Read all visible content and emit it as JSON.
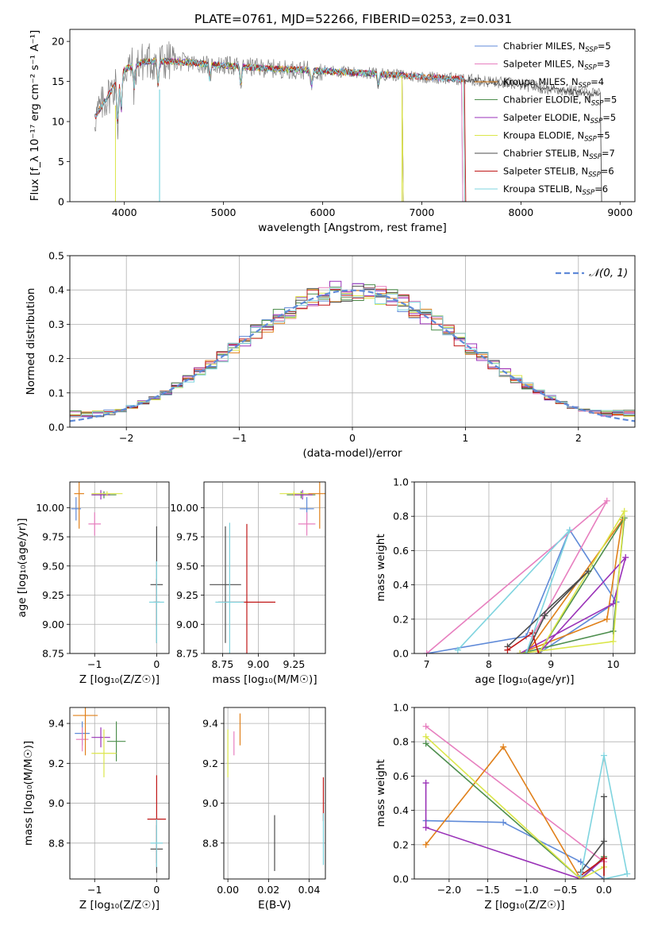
{
  "title": "PLATE=0761, MJD=52266, FIBERID=0253, z=0.031",
  "colors": {
    "Chabrier MILES": "#5f8ad8",
    "Salpeter MILES": "#e77fbf",
    "Kroupa MILES": "#e0801a",
    "Chabrier ELODIE": "#4e8f4e",
    "Salpeter ELODIE": "#9a32b8",
    "Kroupa ELODIE": "#dbe64a",
    "Chabrier STELIB": "#4d4d4d",
    "Salpeter STELIB": "#c01818",
    "Kroupa STELIB": "#7fd4df"
  },
  "chart_data": [
    {
      "id": "spectrum",
      "type": "line",
      "title": "PLATE=0761, MJD=52266, FIBERID=0253, z=0.031",
      "xlabel": "wavelength [Angstrom, rest frame]",
      "ylabel": "Flux [f_λ 10⁻¹⁷ erg cm⁻² s⁻¹ A⁻¹]",
      "xlim": [
        3450,
        9150
      ],
      "ylim": [
        0,
        21.5
      ],
      "xticks": [
        4000,
        5000,
        6000,
        7000,
        8000,
        9000
      ],
      "yticks": [
        0,
        5,
        10,
        15,
        20
      ],
      "grid": false,
      "legend_position": "upper-right",
      "continuum": [
        [
          3700,
          10.5
        ],
        [
          3800,
          12.5
        ],
        [
          3900,
          14.5
        ],
        [
          4000,
          16.5
        ],
        [
          4200,
          17.5
        ],
        [
          4500,
          17.5
        ],
        [
          5000,
          17.0
        ],
        [
          5500,
          16.6
        ],
        [
          6000,
          16.3
        ],
        [
          6500,
          16.0
        ],
        [
          7000,
          15.6
        ],
        [
          7500,
          15.2
        ],
        [
          8000,
          14.6
        ],
        [
          8500,
          13.8
        ],
        [
          8800,
          13.4
        ]
      ],
      "series": [
        {
          "name": "Chabrier MILES",
          "nssp": "5",
          "xrange": [
            3700,
            7400
          ]
        },
        {
          "name": "Salpeter MILES",
          "nssp": "3",
          "xrange": [
            3700,
            7400
          ]
        },
        {
          "name": "Kroupa MILES",
          "nssp": "4",
          "xrange": [
            3700,
            7420
          ]
        },
        {
          "name": "Chabrier ELODIE",
          "nssp": "5",
          "xrange": [
            3900,
            6800
          ]
        },
        {
          "name": "Salpeter ELODIE",
          "nssp": "5",
          "xrange": [
            3900,
            6800
          ]
        },
        {
          "name": "Kroupa ELODIE",
          "nssp": "5",
          "xrange": [
            3900,
            6800
          ]
        },
        {
          "name": "Chabrier STELIB",
          "nssp": "7",
          "xrange": [
            3700,
            8800
          ]
        },
        {
          "name": "Salpeter STELIB",
          "nssp": "6",
          "xrange": [
            3700,
            7430
          ]
        },
        {
          "name": "Kroupa STELIB",
          "nssp": "6",
          "xrange": [
            3700,
            7420
          ]
        }
      ]
    },
    {
      "id": "residuals",
      "type": "bar",
      "xlabel": "(data-model)/error",
      "ylabel": "Normed distribution",
      "xlim": [
        -2.5,
        2.5
      ],
      "ylim": [
        0,
        0.5
      ],
      "xticks": [
        -2,
        -1,
        0,
        1,
        2
      ],
      "yticks": [
        0.0,
        0.1,
        0.2,
        0.3,
        0.4,
        0.5
      ],
      "grid": true,
      "legend": "𝒩(0, 1)",
      "legend_position": "upper-right",
      "bin_width": 0.1
    },
    {
      "id": "age-vs-Z",
      "type": "scatter",
      "xlabel": "Z [log₁₀(Z/Z☉)]",
      "ylabel": "age  [log₁₀(age/yr)]",
      "xlim": [
        -1.4,
        0.2
      ],
      "ylim": [
        8.75,
        10.22
      ],
      "xticks": [
        -1,
        0
      ],
      "yticks": [
        8.75,
        9.0,
        9.25,
        9.5,
        9.75,
        10.0
      ],
      "grid": true,
      "points": [
        {
          "series": "Chabrier MILES",
          "x": -1.3,
          "y": 9.99,
          "xerr": 0.08,
          "yerr": 0.1
        },
        {
          "series": "Salpeter MILES",
          "x": -1.0,
          "y": 9.86,
          "xerr": 0.1,
          "yerr": 0.1
        },
        {
          "series": "Kroupa MILES",
          "x": -1.25,
          "y": 10.12,
          "xerr": 0.08,
          "yerr": 0.3
        },
        {
          "series": "Chabrier ELODIE",
          "x": -0.85,
          "y": 10.11,
          "xerr": 0.2,
          "yerr": 0.03
        },
        {
          "series": "Salpeter ELODIE",
          "x": -0.9,
          "y": 10.11,
          "xerr": 0.15,
          "yerr": 0.04
        },
        {
          "series": "Kroupa ELODIE",
          "x": -0.8,
          "y": 10.12,
          "xerr": 0.25,
          "yerr": 0.02
        },
        {
          "series": "Chabrier STELIB",
          "x": 0.0,
          "y": 9.34,
          "xerr": 0.1,
          "yerr": 0.5
        },
        {
          "series": "Salpeter STELIB",
          "x": 0.0,
          "y": 9.19,
          "xerr": 0.05,
          "yerr": 0.2
        },
        {
          "series": "Kroupa STELIB",
          "x": 0.0,
          "y": 9.19,
          "xerr": 0.12,
          "yerr": 0.35
        }
      ]
    },
    {
      "id": "age-vs-mass",
      "type": "scatter",
      "xlabel": "mass [log₁₀(M/M☉)]",
      "xlim": [
        8.62,
        9.47
      ],
      "ylim": [
        8.75,
        10.22
      ],
      "xticks": [
        8.75,
        9.0,
        9.25
      ],
      "yticks": [
        8.75,
        9.0,
        9.25,
        9.5,
        9.75,
        10.0
      ],
      "grid": true,
      "points": [
        {
          "series": "Chabrier MILES",
          "x": 9.34,
          "y": 9.99,
          "xerr": 0.05,
          "yerr": 0.1
        },
        {
          "series": "Salpeter MILES",
          "x": 9.34,
          "y": 9.86,
          "xerr": 0.06,
          "yerr": 0.1
        },
        {
          "series": "Kroupa MILES",
          "x": 9.43,
          "y": 10.12,
          "xerr": 0.08,
          "yerr": 0.3
        },
        {
          "series": "Chabrier ELODIE",
          "x": 9.3,
          "y": 10.11,
          "xerr": 0.1,
          "yerr": 0.03
        },
        {
          "series": "Salpeter ELODIE",
          "x": 9.31,
          "y": 10.11,
          "xerr": 0.07,
          "yerr": 0.04
        },
        {
          "series": "Kroupa ELODIE",
          "x": 9.25,
          "y": 10.12,
          "xerr": 0.1,
          "yerr": 0.02
        },
        {
          "series": "Chabrier STELIB",
          "x": 8.77,
          "y": 9.34,
          "xerr": 0.11,
          "yerr": 0.5
        },
        {
          "series": "Salpeter STELIB",
          "x": 8.92,
          "y": 9.19,
          "xerr": 0.2,
          "yerr": 0.67
        },
        {
          "series": "Kroupa STELIB",
          "x": 8.8,
          "y": 9.19,
          "xerr": 0.1,
          "yerr": 0.68
        }
      ]
    },
    {
      "id": "mass-weight-vs-age",
      "type": "line",
      "xlabel": "age  [log₁₀(age/yr)]",
      "ylabel": "mass weight",
      "xlim": [
        6.8,
        10.35
      ],
      "ylim": [
        0,
        1
      ],
      "xticks": [
        7,
        8,
        9,
        10
      ],
      "yticks": [
        0.0,
        0.2,
        0.4,
        0.6,
        0.8,
        1.0
      ],
      "grid": true,
      "series": [
        {
          "name": "Chabrier MILES",
          "points": [
            [
              7.0,
              0.0
            ],
            [
              8.6,
              0.1
            ],
            [
              9.3,
              0.72
            ],
            [
              10.05,
              0.3
            ],
            [
              8.8,
              0.0
            ]
          ]
        },
        {
          "name": "Salpeter MILES",
          "points": [
            [
              7.0,
              0.0
            ],
            [
              9.9,
              0.89
            ],
            [
              8.7,
              0.1
            ]
          ]
        },
        {
          "name": "Kroupa MILES",
          "points": [
            [
              8.5,
              0.0
            ],
            [
              9.9,
              0.2
            ],
            [
              10.15,
              0.78
            ],
            [
              8.6,
              0.0
            ]
          ]
        },
        {
          "name": "Chabrier ELODIE",
          "points": [
            [
              8.5,
              0.0
            ],
            [
              10.0,
              0.13
            ],
            [
              10.18,
              0.79
            ],
            [
              8.8,
              0.0
            ]
          ]
        },
        {
          "name": "Salpeter ELODIE",
          "points": [
            [
              8.5,
              0.0
            ],
            [
              10.0,
              0.29
            ],
            [
              10.2,
              0.56
            ],
            [
              8.8,
              0.0
            ]
          ]
        },
        {
          "name": "Kroupa ELODIE",
          "points": [
            [
              8.5,
              0.0
            ],
            [
              10.0,
              0.07
            ],
            [
              10.18,
              0.83
            ],
            [
              8.8,
              0.0
            ]
          ]
        },
        {
          "name": "Chabrier STELIB",
          "points": [
            [
              8.3,
              0.04
            ],
            [
              9.6,
              0.48
            ],
            [
              8.9,
              0.22
            ],
            [
              8.6,
              0.0
            ]
          ]
        },
        {
          "name": "Salpeter STELIB",
          "points": [
            [
              8.3,
              0.02
            ],
            [
              8.7,
              0.12
            ],
            [
              8.8,
              0.0
            ]
          ]
        },
        {
          "name": "Kroupa STELIB",
          "points": [
            [
              7.5,
              0.02
            ],
            [
              9.3,
              0.72
            ],
            [
              8.6,
              0.0
            ]
          ]
        }
      ]
    },
    {
      "id": "mass-vs-Z",
      "type": "scatter",
      "xlabel": "Z [log₁₀(Z/Z☉)]",
      "ylabel": "mass [log₁₀(M/M☉)]",
      "xlim": [
        -1.4,
        0.2
      ],
      "ylim": [
        8.62,
        9.48
      ],
      "xticks": [
        -1,
        0
      ],
      "yticks": [
        8.8,
        9.0,
        9.2,
        9.4
      ],
      "grid": true,
      "points": [
        {
          "series": "Chabrier MILES",
          "x": -1.2,
          "y": 9.35,
          "xerr": 0.12,
          "yerr": 0.06
        },
        {
          "series": "Salpeter MILES",
          "x": -1.2,
          "y": 9.32,
          "xerr": 0.1,
          "yerr": 0.06
        },
        {
          "series": "Kroupa MILES",
          "x": -1.15,
          "y": 9.44,
          "xerr": 0.2,
          "yerr": 0.2
        },
        {
          "series": "Chabrier ELODIE",
          "x": -0.65,
          "y": 9.31,
          "xerr": 0.15,
          "yerr": 0.1
        },
        {
          "series": "Salpeter ELODIE",
          "x": -0.9,
          "y": 9.33,
          "xerr": 0.15,
          "yerr": 0.05
        },
        {
          "series": "Kroupa ELODIE",
          "x": -0.85,
          "y": 9.25,
          "xerr": 0.2,
          "yerr": 0.12
        },
        {
          "series": "Chabrier STELIB",
          "x": 0.0,
          "y": 8.77,
          "xerr": 0.1,
          "yerr": 0.12
        },
        {
          "series": "Salpeter STELIB",
          "x": 0.0,
          "y": 8.92,
          "xerr": 0.15,
          "yerr": 0.22
        },
        {
          "series": "Kroupa STELIB",
          "x": 0.0,
          "y": 8.8,
          "xerr": 0.1,
          "yerr": 0.12
        }
      ]
    },
    {
      "id": "mass-vs-EBV",
      "type": "scatter",
      "xlabel": "E(B-V)",
      "xlim": [
        -0.002,
        0.048
      ],
      "ylim": [
        8.62,
        9.48
      ],
      "xticks": [
        0.0,
        0.02,
        0.04
      ],
      "yticks": [
        8.8,
        9.0,
        9.2,
        9.4
      ],
      "grid": true,
      "points": [
        {
          "series": "Kroupa ELODIE",
          "x": 0.0,
          "y": 9.25,
          "xerr": 0,
          "yerr": 0.12
        },
        {
          "series": "Salpeter MILES",
          "x": 0.003,
          "y": 9.3,
          "xerr": 0,
          "yerr": 0.06
        },
        {
          "series": "Kroupa MILES",
          "x": 0.006,
          "y": 9.37,
          "xerr": 0,
          "yerr": 0.08
        },
        {
          "series": "Chabrier STELIB",
          "x": 0.023,
          "y": 8.8,
          "xerr": 0,
          "yerr": 0.14
        },
        {
          "series": "Salpeter STELIB",
          "x": 0.047,
          "y": 9.02,
          "xerr": 0,
          "yerr": 0.11
        },
        {
          "series": "Kroupa STELIB",
          "x": 0.047,
          "y": 8.82,
          "xerr": 0,
          "yerr": 0.13
        }
      ]
    },
    {
      "id": "mass-weight-vs-Z",
      "type": "line",
      "xlabel": "Z [log₁₀(Z/Z☉)]",
      "ylabel": "mass weight",
      "xlim": [
        -2.45,
        0.4
      ],
      "ylim": [
        0,
        1
      ],
      "xticks": [
        -2.0,
        -1.5,
        -1.0,
        -0.5,
        0.0
      ],
      "yticks": [
        0.0,
        0.2,
        0.4,
        0.6,
        0.8,
        1.0
      ],
      "grid": true,
      "series": [
        {
          "name": "Chabrier MILES",
          "points": [
            [
              -2.3,
              0.34
            ],
            [
              -1.3,
              0.33
            ],
            [
              -0.3,
              0.1
            ],
            [
              0.0,
              0.0
            ]
          ]
        },
        {
          "name": "Salpeter MILES",
          "points": [
            [
              -2.3,
              0.89
            ],
            [
              0.0,
              0.1
            ]
          ]
        },
        {
          "name": "Kroupa MILES",
          "points": [
            [
              -2.3,
              0.2
            ],
            [
              -1.3,
              0.77
            ],
            [
              -0.3,
              0.0
            ]
          ]
        },
        {
          "name": "Chabrier ELODIE",
          "points": [
            [
              -2.3,
              0.79
            ],
            [
              -0.3,
              0.0
            ],
            [
              0.0,
              0.13
            ]
          ]
        },
        {
          "name": "Salpeter ELODIE",
          "points": [
            [
              -2.3,
              0.56
            ],
            [
              -2.3,
              0.3
            ],
            [
              -0.3,
              0.0
            ],
            [
              0.0,
              0.12
            ]
          ]
        },
        {
          "name": "Kroupa ELODIE",
          "points": [
            [
              -2.3,
              0.83
            ],
            [
              -0.3,
              0.0
            ],
            [
              0.0,
              0.07
            ]
          ]
        },
        {
          "name": "Chabrier STELIB",
          "points": [
            [
              -0.3,
              0.04
            ],
            [
              0.0,
              0.22
            ],
            [
              0.0,
              0.48
            ],
            [
              0.0,
              0.0
            ]
          ]
        },
        {
          "name": "Salpeter STELIB",
          "points": [
            [
              -0.3,
              0.02
            ],
            [
              0.0,
              0.12
            ],
            [
              0.0,
              0.0
            ]
          ]
        },
        {
          "name": "Kroupa STELIB",
          "points": [
            [
              -0.3,
              0.02
            ],
            [
              0.0,
              0.72
            ],
            [
              0.3,
              0.03
            ],
            [
              0.0,
              0.0
            ]
          ]
        }
      ]
    }
  ]
}
